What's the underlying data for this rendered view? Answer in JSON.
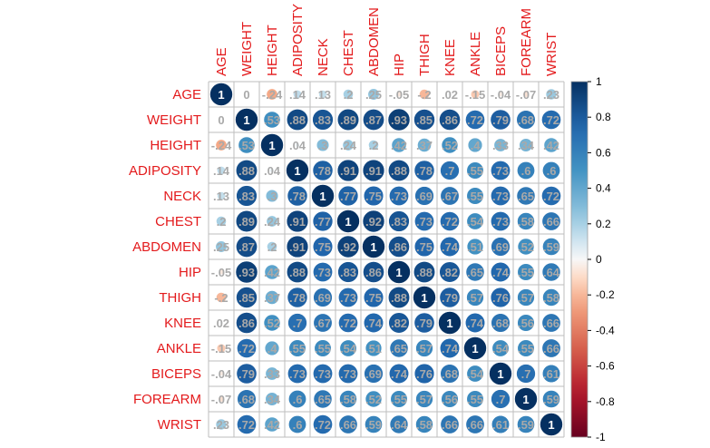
{
  "chart_data": {
    "type": "heatmap",
    "variables": [
      "AGE",
      "WEIGHT",
      "HEIGHT",
      "ADIPOSITY",
      "NECK",
      "CHEST",
      "ABDOMEN",
      "HIP",
      "THIGH",
      "KNEE",
      "ANKLE",
      "BICEPS",
      "FOREARM",
      "WRIST"
    ],
    "matrix": [
      [
        1,
        0,
        -0.24,
        0.14,
        0.13,
        0.2,
        0.25,
        -0.05,
        -0.2,
        0.02,
        -0.15,
        -0.04,
        -0.07,
        0.23
      ],
      [
        0,
        1,
        0.53,
        0.88,
        0.83,
        0.89,
        0.87,
        0.93,
        0.85,
        0.86,
        0.72,
        0.79,
        0.68,
        0.72
      ],
      [
        -0.24,
        0.53,
        1,
        0.04,
        0.3,
        0.24,
        0.2,
        0.42,
        0.37,
        0.52,
        0.4,
        0.33,
        0.34,
        0.42
      ],
      [
        0.14,
        0.88,
        0.04,
        1,
        0.78,
        0.91,
        0.91,
        0.88,
        0.78,
        0.7,
        0.55,
        0.73,
        0.6,
        0.6
      ],
      [
        0.13,
        0.83,
        0.3,
        0.78,
        1,
        0.77,
        0.75,
        0.73,
        0.69,
        0.67,
        0.55,
        0.73,
        0.65,
        0.72
      ],
      [
        0.2,
        0.89,
        0.24,
        0.91,
        0.77,
        1,
        0.92,
        0.83,
        0.73,
        0.72,
        0.54,
        0.73,
        0.58,
        0.66
      ],
      [
        0.25,
        0.87,
        0.2,
        0.91,
        0.75,
        0.92,
        1,
        0.86,
        0.75,
        0.74,
        0.51,
        0.69,
        0.52,
        0.59
      ],
      [
        -0.05,
        0.93,
        0.42,
        0.88,
        0.73,
        0.83,
        0.86,
        1,
        0.88,
        0.82,
        0.65,
        0.74,
        0.55,
        0.64
      ],
      [
        -0.2,
        0.85,
        0.37,
        0.78,
        0.69,
        0.73,
        0.75,
        0.88,
        1,
        0.79,
        0.57,
        0.76,
        0.57,
        0.58
      ],
      [
        0.02,
        0.86,
        0.52,
        0.7,
        0.67,
        0.72,
        0.74,
        0.82,
        0.79,
        1,
        0.74,
        0.68,
        0.56,
        0.66
      ],
      [
        -0.15,
        0.72,
        0.4,
        0.55,
        0.55,
        0.54,
        0.51,
        0.65,
        0.57,
        0.74,
        1,
        0.54,
        0.55,
        0.66
      ],
      [
        -0.04,
        0.79,
        0.33,
        0.73,
        0.73,
        0.73,
        0.69,
        0.74,
        0.76,
        0.68,
        0.54,
        1,
        0.7,
        0.61
      ],
      [
        -0.07,
        0.68,
        0.34,
        0.6,
        0.65,
        0.58,
        0.52,
        0.55,
        0.57,
        0.56,
        0.55,
        0.7,
        1,
        0.59
      ],
      [
        0.23,
        0.72,
        0.42,
        0.6,
        0.72,
        0.66,
        0.59,
        0.64,
        0.58,
        0.66,
        0.66,
        0.61,
        0.59,
        1
      ]
    ],
    "legend": {
      "position": "right",
      "ticks": [
        "1",
        "0.8",
        "0.6",
        "0.4",
        "0.2",
        "0",
        "-0.2",
        "-0.4",
        "-0.6",
        "-0.8",
        "-1"
      ]
    },
    "grid": true
  }
}
